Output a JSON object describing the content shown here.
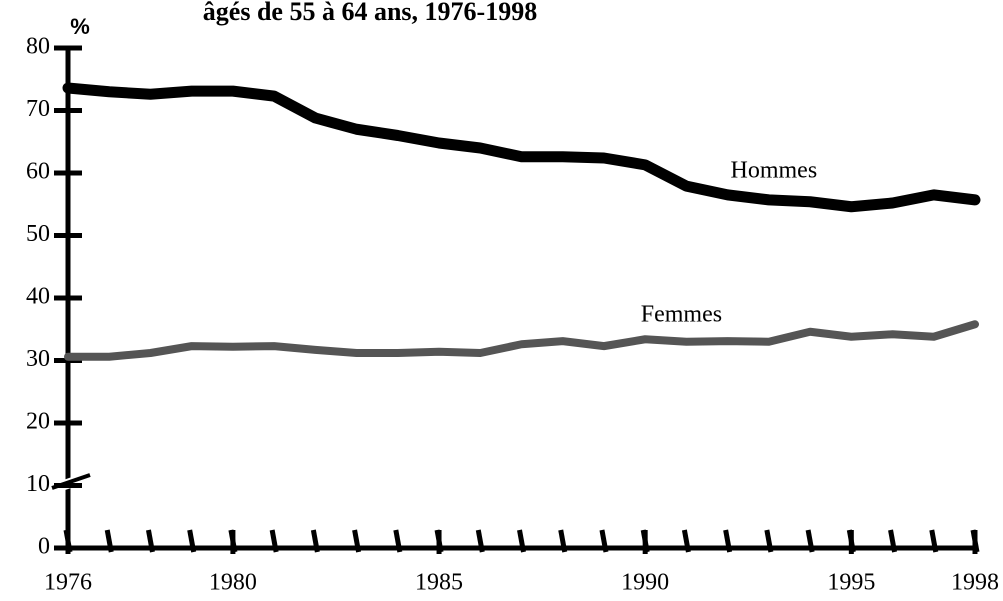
{
  "chart_data": {
    "type": "line",
    "title": "âgés de 55 à 64 ans, 1976-1998",
    "y_label": "%",
    "x": [
      1976,
      1977,
      1978,
      1979,
      1980,
      1981,
      1982,
      1983,
      1984,
      1985,
      1986,
      1987,
      1988,
      1989,
      1990,
      1991,
      1992,
      1993,
      1994,
      1995,
      1996,
      1997,
      1998
    ],
    "series": [
      {
        "name": "Hommes",
        "color": "#000000",
        "values": [
          73.6,
          73.0,
          72.6,
          73.1,
          73.1,
          72.3,
          68.8,
          67.0,
          66.0,
          64.8,
          64.0,
          62.6,
          62.6,
          62.4,
          61.3,
          57.9,
          56.5,
          55.7,
          55.4,
          54.6,
          55.2,
          56.5,
          55.7
        ]
      },
      {
        "name": "Femmes",
        "color": "#555555",
        "values": [
          30.6,
          30.6,
          31.2,
          32.3,
          32.2,
          32.3,
          31.7,
          31.2,
          31.2,
          31.4,
          31.2,
          32.6,
          33.1,
          32.3,
          33.4,
          33.0,
          33.1,
          33.0,
          34.6,
          33.8,
          34.2,
          33.8,
          35.8
        ]
      }
    ],
    "xlim": [
      1976,
      1998
    ],
    "xticks": [
      1976,
      1980,
      1985,
      1990,
      1995,
      1998
    ],
    "ylim": [
      0,
      80
    ],
    "yticks": [
      0,
      10,
      20,
      30,
      40,
      50,
      60,
      70,
      80
    ],
    "grid": false
  }
}
